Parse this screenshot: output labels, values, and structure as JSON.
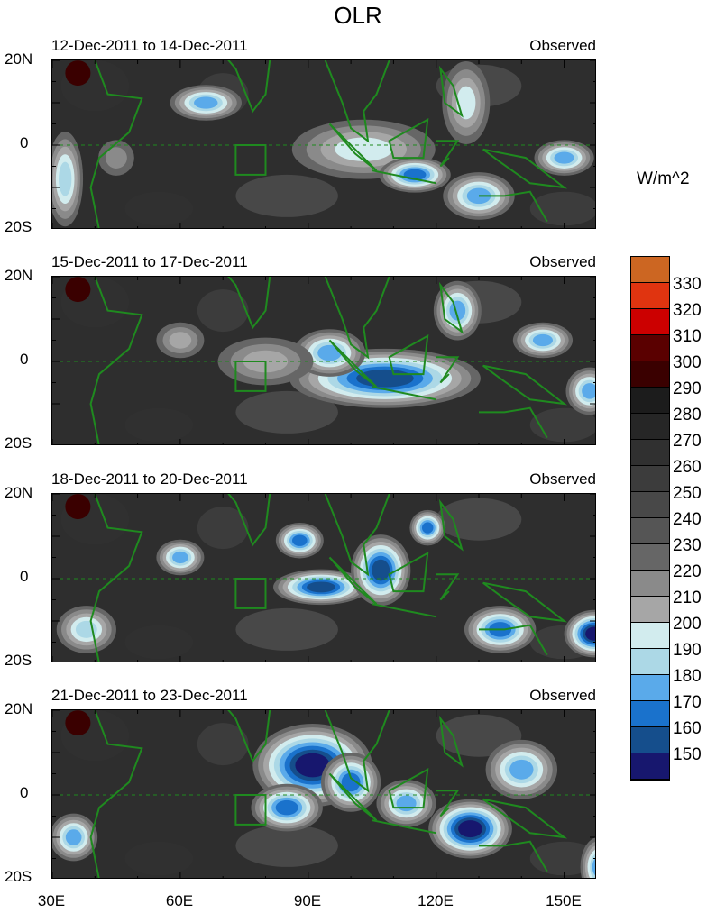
{
  "title": "OLR",
  "units": "W/m^2",
  "panels": [
    {
      "date": "12-Dec-2011 to 14-Dec-2011",
      "label": "Observed"
    },
    {
      "date": "15-Dec-2011 to 17-Dec-2011",
      "label": "Observed"
    },
    {
      "date": "18-Dec-2011 to 20-Dec-2011",
      "label": "Observed"
    },
    {
      "date": "21-Dec-2011 to 23-Dec-2011",
      "label": "Observed"
    }
  ],
  "lat_labels": [
    "20N",
    "0",
    "20S"
  ],
  "lon_labels": [
    "30E",
    "60E",
    "90E",
    "120E",
    "150E"
  ],
  "colorbar": {
    "labels": [
      "330",
      "320",
      "310",
      "300",
      "290",
      "280",
      "270",
      "260",
      "250",
      "240",
      "230",
      "220",
      "210",
      "200",
      "190",
      "180",
      "170",
      "160",
      "150"
    ],
    "colors": [
      "#cc6622",
      "#e03410",
      "#cc0000",
      "#5a0000",
      "#3a0000",
      "#1c1c1c",
      "#262626",
      "#303030",
      "#3c3c3c",
      "#484848",
      "#555555",
      "#666666",
      "#8a8a8a",
      "#a6a6a6",
      "#d2ecee",
      "#acd8e6",
      "#5aaaea",
      "#1a72cc",
      "#154e8c",
      "#17176e"
    ]
  }
}
